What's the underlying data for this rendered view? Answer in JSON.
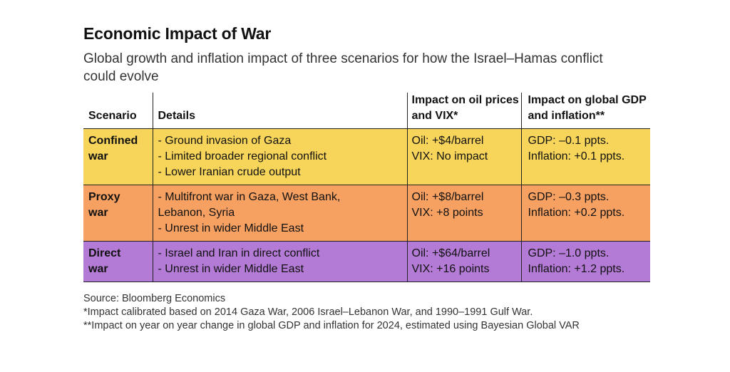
{
  "title": "Economic Impact of War",
  "subtitle": "Global growth and inflation impact of three scenarios for how the Israel–Hamas conflict could evolve",
  "table": {
    "headers": {
      "scenario": "Scenario",
      "details": "Details",
      "oil": "Impact on oil prices and VIX*",
      "gdp": "Impact on global GDP and inflation**"
    },
    "rows": [
      {
        "scenario": "Confined war",
        "color": "#f7d55a",
        "details": [
          "- Ground invasion of Gaza",
          "- Limited broader regional conflict",
          "- Lower Iranian crude output"
        ],
        "oil": [
          "Oil: +$4/barrel",
          "VIX: No impact"
        ],
        "gdp": [
          "GDP: –0.1 ppts.",
          "Inflation: +0.1 ppts."
        ]
      },
      {
        "scenario": "Proxy war",
        "color": "#f6a061",
        "details": [
          "- Multifront war in Gaza, West Bank, Lebanon, Syria",
          "- Unrest in wider Middle East"
        ],
        "oil": [
          "Oil: +$8/barrel",
          "VIX: +8 points"
        ],
        "gdp": [
          "GDP: –0.3 ppts.",
          "Inflation: +0.2 ppts."
        ]
      },
      {
        "scenario": "Direct war",
        "color": "#b37bd5",
        "details": [
          "- Israel and Iran in direct conflict",
          "- Unrest in wider Middle East"
        ],
        "oil": [
          "Oil: +$64/barrel",
          "VIX: +16 points"
        ],
        "gdp": [
          "GDP: –1.0 ppts.",
          "Inflation: +1.2 ppts."
        ]
      }
    ]
  },
  "footer": {
    "source": "Source: Bloomberg Economics",
    "note1": "*Impact calibrated based on 2014 Gaza War, 2006 Israel–Lebanon War, and 1990–1991 Gulf War.",
    "note2": "**Impact on year on year change in global GDP and inflation for 2024, estimated using Bayesian Global VAR"
  }
}
